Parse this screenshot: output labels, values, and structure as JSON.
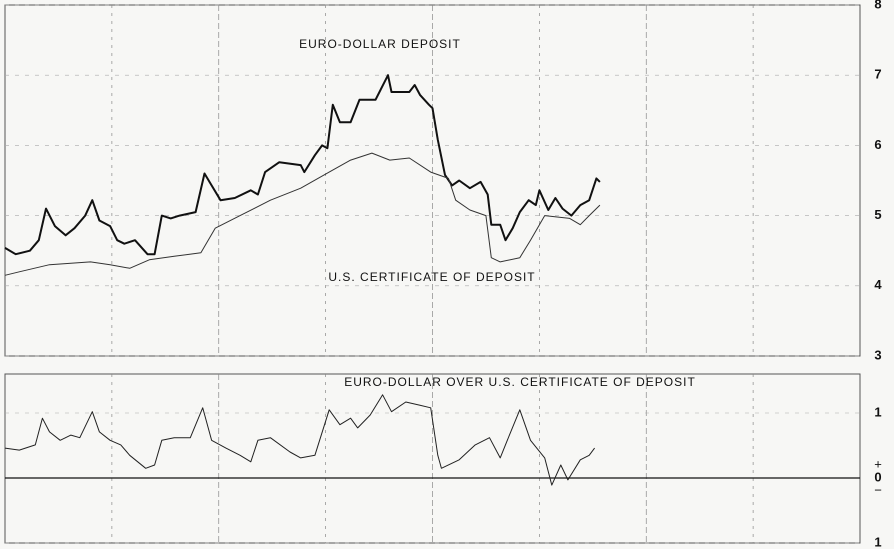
{
  "chart_data": [
    {
      "type": "line",
      "xlim": [
        0,
        48
      ],
      "xticks": [
        6,
        12,
        18,
        24,
        30,
        36,
        42
      ],
      "ylim": [
        3,
        8
      ],
      "yticks": [
        3,
        4,
        5,
        6,
        7,
        8
      ],
      "grid": true,
      "axis_side": "right",
      "series": [
        {
          "name": "EURO-DOLLAR DEPOSIT",
          "color": "#111111",
          "line_width": 2,
          "x": [
            0,
            0.6,
            1.4,
            1.9,
            2.3,
            2.8,
            3.4,
            3.9,
            4.5,
            4.9,
            5.3,
            5.9,
            6.3,
            6.7,
            7.3,
            8.0,
            8.4,
            8.8,
            9.3,
            9.8,
            10.7,
            11.2,
            11.6,
            12.1,
            12.9,
            13.8,
            14.2,
            14.6,
            15.4,
            16.6,
            16.8,
            17.4,
            17.8,
            18.1,
            18.4,
            18.8,
            19.4,
            19.9,
            20.8,
            21.5,
            21.7,
            22.7,
            23.0,
            23.3,
            23.8,
            24.0,
            24.3,
            24.7,
            25.1,
            25.5,
            26.1,
            26.7,
            27.1,
            27.3,
            27.8,
            28.1,
            28.5,
            28.9,
            29.4,
            29.8,
            30.0,
            30.5,
            30.9,
            31.3,
            31.8,
            32.3,
            32.8,
            33.2,
            33.4
          ],
          "values": [
            4.54,
            4.45,
            4.5,
            4.65,
            5.1,
            4.85,
            4.72,
            4.82,
            5.0,
            5.22,
            4.93,
            4.85,
            4.65,
            4.6,
            4.65,
            4.45,
            4.45,
            5.0,
            4.96,
            5.0,
            5.05,
            5.6,
            5.43,
            5.22,
            5.25,
            5.36,
            5.3,
            5.62,
            5.76,
            5.72,
            5.62,
            5.86,
            6.0,
            5.96,
            6.58,
            6.33,
            6.33,
            6.65,
            6.65,
            7.0,
            6.76,
            6.76,
            6.86,
            6.72,
            6.58,
            6.53,
            6.08,
            5.58,
            5.43,
            5.5,
            5.39,
            5.48,
            5.3,
            4.87,
            4.87,
            4.65,
            4.82,
            5.05,
            5.22,
            5.15,
            5.36,
            5.08,
            5.25,
            5.1,
            5.0,
            5.15,
            5.22,
            5.53,
            5.48
          ]
        },
        {
          "name": "U.S. CERTIFICATE OF DEPOSIT",
          "color": "#333333",
          "line_width": 1,
          "x": [
            0,
            0.8,
            2.5,
            4.8,
            5.9,
            7.0,
            8.1,
            9.5,
            11.0,
            11.8,
            13.2,
            14.9,
            16.6,
            18.2,
            19.4,
            20.6,
            21.6,
            22.7,
            23.9,
            24.9,
            25.3,
            26.1,
            27.0,
            27.3,
            27.8,
            28.9,
            29.5,
            30.3,
            31.7,
            32.3,
            32.8,
            33.4
          ],
          "values": [
            4.15,
            4.2,
            4.3,
            4.34,
            4.3,
            4.25,
            4.37,
            4.42,
            4.47,
            4.82,
            5.0,
            5.22,
            5.39,
            5.62,
            5.79,
            5.89,
            5.79,
            5.82,
            5.62,
            5.53,
            5.22,
            5.08,
            5.0,
            4.4,
            4.34,
            4.4,
            4.65,
            5.0,
            4.96,
            4.87,
            5.0,
            5.15
          ]
        }
      ]
    },
    {
      "type": "line",
      "xlim": [
        0,
        48
      ],
      "xticks": [
        6,
        12,
        18,
        24,
        30,
        36,
        42
      ],
      "ylim": [
        -1,
        1.6
      ],
      "yticks": [
        {
          "value": -1,
          "label": "1"
        },
        0,
        1
      ],
      "grid": true,
      "axis_side": "right",
      "zero_line": true,
      "upper_sign": "+",
      "lower_sign": "−",
      "series": [
        {
          "name": "EURO-DOLLAR OVER U.S. CERTIFICATE OF DEPOSIT",
          "color": "#222222",
          "line_width": 1,
          "x": [
            0,
            0.8,
            1.7,
            2.1,
            2.5,
            3.1,
            3.7,
            4.2,
            4.9,
            5.3,
            5.9,
            6.5,
            7.0,
            7.9,
            8.4,
            8.8,
            9.5,
            10.4,
            11.1,
            11.6,
            12.4,
            13.2,
            13.8,
            14.2,
            14.9,
            16.0,
            16.6,
            17.4,
            18.2,
            18.8,
            19.4,
            19.8,
            20.5,
            21.2,
            21.7,
            22.5,
            23.3,
            23.9,
            24.3,
            24.5,
            25.5,
            26.4,
            27.2,
            27.8,
            28.2,
            28.9,
            29.5,
            30.3,
            30.7,
            31.2,
            31.6,
            32.3,
            32.8,
            33.1
          ],
          "values": [
            0.46,
            0.43,
            0.51,
            0.92,
            0.71,
            0.58,
            0.66,
            0.62,
            1.02,
            0.71,
            0.58,
            0.51,
            0.35,
            0.15,
            0.2,
            0.58,
            0.62,
            0.62,
            1.08,
            0.58,
            0.46,
            0.35,
            0.25,
            0.58,
            0.62,
            0.4,
            0.31,
            0.35,
            1.05,
            0.82,
            0.92,
            0.77,
            0.97,
            1.28,
            1.02,
            1.17,
            1.12,
            1.08,
            0.35,
            0.15,
            0.28,
            0.51,
            0.62,
            0.31,
            0.58,
            1.05,
            0.58,
            0.31,
            -0.11,
            0.2,
            -0.03,
            0.28,
            0.35,
            0.46
          ]
        }
      ]
    }
  ]
}
